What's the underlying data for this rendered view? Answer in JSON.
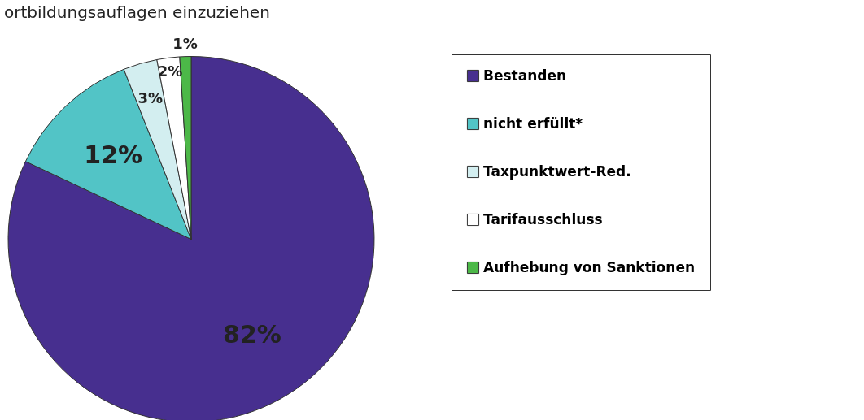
{
  "chart_data": {
    "type": "pie",
    "annotations": [
      "ortbildungsauflagen einzuziehen"
    ],
    "categories": [
      "Bestanden",
      "nicht erfüllt*",
      "Taxpunktwert-Red.",
      "Tarifausschluss",
      "Aufhebung von Sanktionen"
    ],
    "values": [
      82,
      12,
      3,
      2,
      1
    ],
    "value_labels": [
      "82%",
      "12%",
      "3%",
      "2%",
      "1%"
    ],
    "colors": [
      "#472f8f",
      "#52c4c6",
      "#d3eef0",
      "#ffffff",
      "#4cb848"
    ],
    "legend": "right"
  }
}
